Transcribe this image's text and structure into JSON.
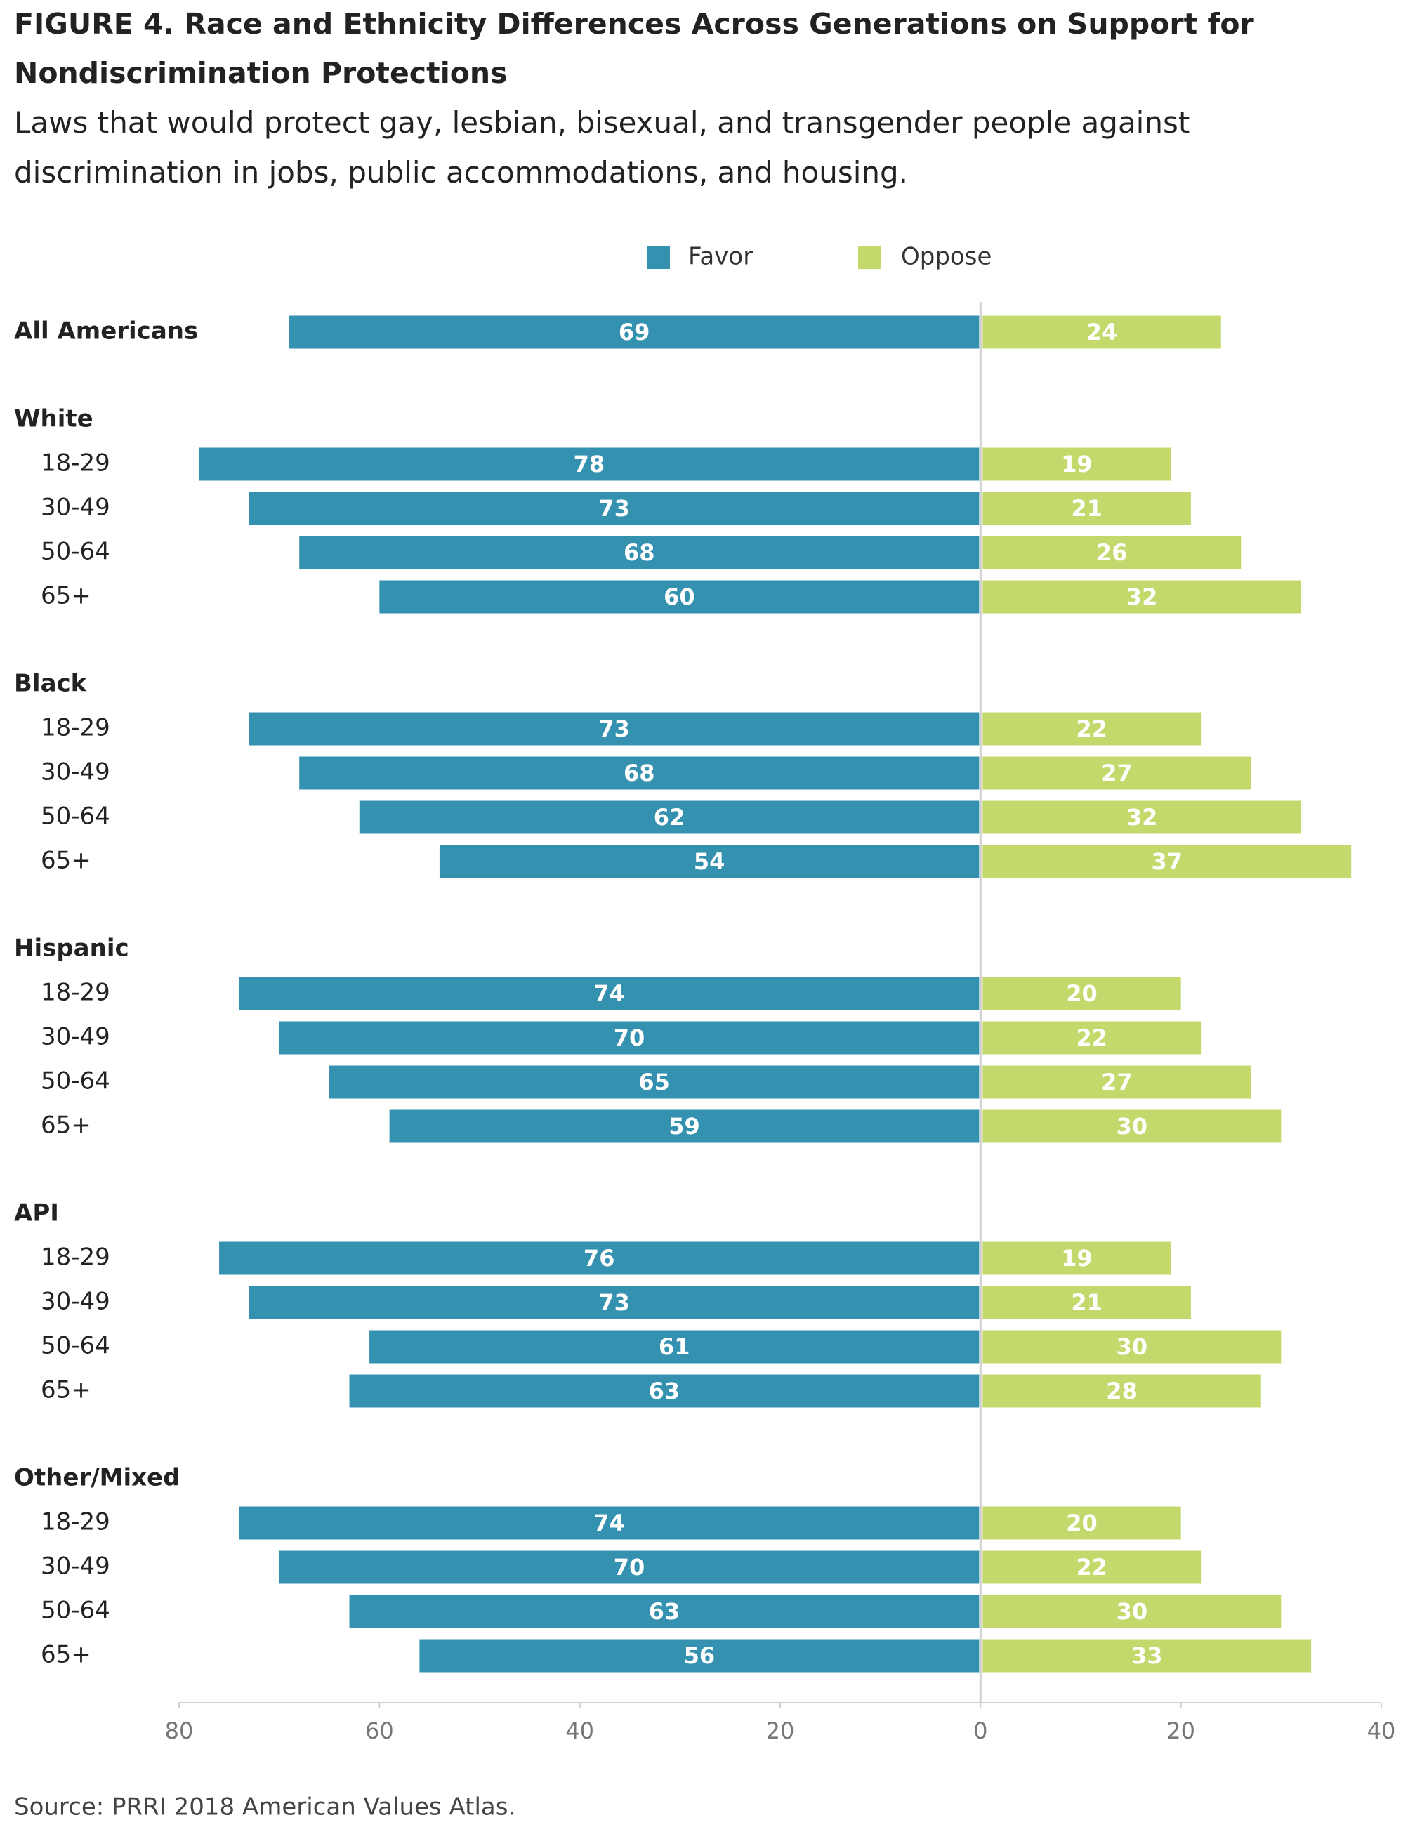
{
  "chart_data": {
    "type": "diverging_bar",
    "title": "FIGURE 4. Race and Ethnicity Differences Across Generations on Support for Nondiscrimination Protections",
    "subtitle": "Laws that would protect gay, lesbian, bisexual, and transgender people against discrimination in jobs, public accommodations, and housing.",
    "source": "Source: PRRI 2018 American Values Atlas.",
    "categories": [
      "All Americans",
      "White",
      "18-29",
      "30-49",
      "50-64",
      "65+",
      "Black",
      "18-29",
      "30-49",
      "50-64",
      "65+",
      "Hispanic",
      "18-29",
      "30-49",
      "50-64",
      "65+",
      "API",
      "18-29",
      "30-49",
      "50-64",
      "65+",
      "Other/Mixed",
      "18-29",
      "30-49",
      "50-64",
      "65+"
    ],
    "series": [
      {
        "name": "Favor",
        "color": "#3591b0",
        "direction": "left",
        "values": [
          69,
          null,
          78,
          73,
          68,
          60,
          null,
          73,
          68,
          62,
          54,
          null,
          74,
          70,
          65,
          59,
          null,
          76,
          73,
          61,
          63,
          null,
          74,
          70,
          63,
          56
        ]
      },
      {
        "name": "Oppose",
        "color": "#c3d96c",
        "direction": "right",
        "values": [
          24,
          null,
          19,
          21,
          26,
          32,
          null,
          22,
          27,
          32,
          37,
          null,
          20,
          22,
          27,
          30,
          null,
          19,
          21,
          30,
          28,
          null,
          20,
          22,
          30,
          33
        ]
      }
    ],
    "xlim": [
      -80,
      40
    ],
    "xticks": [
      {
        "value": -80,
        "label": "80"
      },
      {
        "value": -60,
        "label": "60"
      },
      {
        "value": -40,
        "label": "40"
      },
      {
        "value": -20,
        "label": "20"
      },
      0,
      20,
      40
    ],
    "legend": "top"
  }
}
